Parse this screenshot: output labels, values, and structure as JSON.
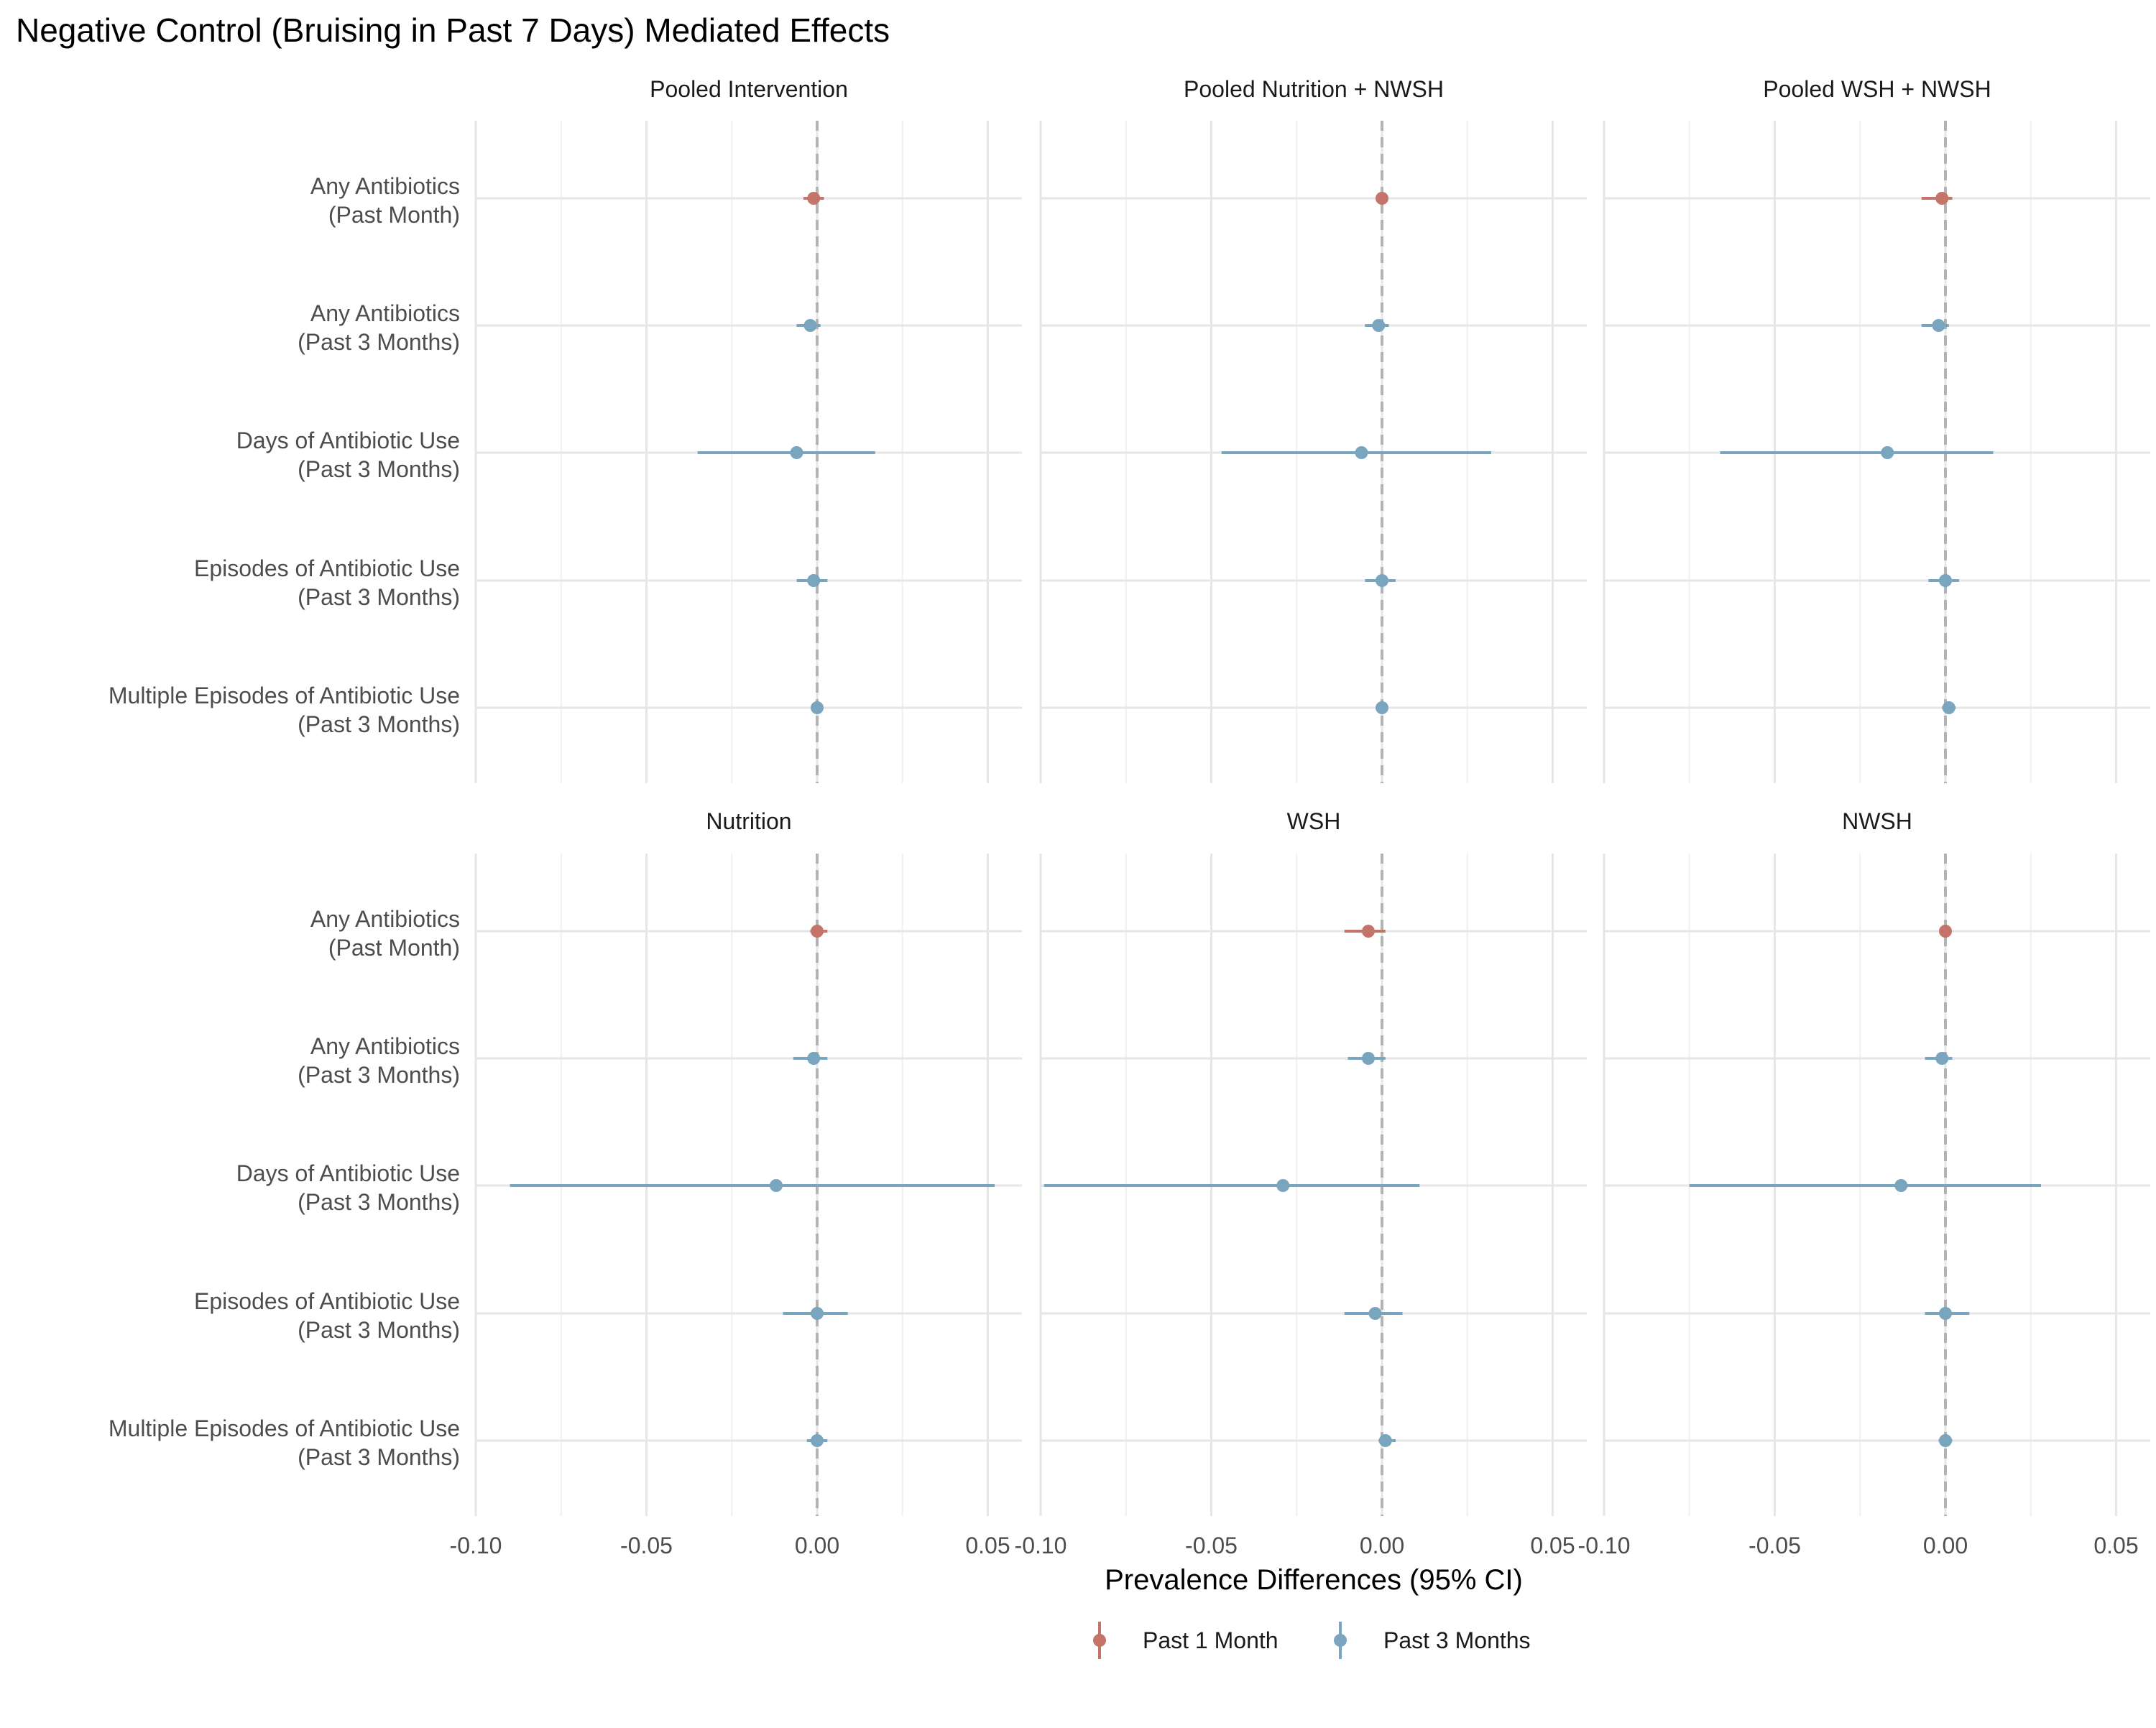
{
  "chart_data": {
    "type": "forest",
    "title": "Negative Control (Bruising in Past 7 Days) Mediated Effects",
    "xlabel": "Prevalence Differences (95% CI)",
    "ylabel": "",
    "xlim": [
      -0.1,
      0.06
    ],
    "x_ticks": [
      -0.1,
      -0.05,
      0.0,
      0.05
    ],
    "x_tick_labels": [
      "-0.10",
      "-0.05",
      "0.00",
      "0.05"
    ],
    "reference_line": 0,
    "grid": true,
    "legend_position": "bottom",
    "outcomes": [
      [
        "Any Antibiotics",
        "(Past Month)"
      ],
      [
        "Any Antibiotics",
        "(Past 3 Months)"
      ],
      [
        "Days of Antibiotic Use",
        "(Past 3 Months)"
      ],
      [
        "Episodes of Antibiotic Use",
        "(Past 3 Months)"
      ],
      [
        "Multiple Episodes of Antibiotic Use",
        "(Past 3 Months)"
      ]
    ],
    "legend": [
      {
        "name": "Past 1 Month",
        "color": "#c47468"
      },
      {
        "name": "Past 3 Months",
        "color": "#7aa5be"
      }
    ],
    "panels": [
      {
        "title": "Pooled Intervention",
        "points": [
          {
            "est": -0.001,
            "lo": -0.004,
            "hi": 0.002,
            "series": 0
          },
          {
            "est": -0.002,
            "lo": -0.006,
            "hi": 0.001,
            "series": 1
          },
          {
            "est": -0.006,
            "lo": -0.035,
            "hi": 0.017,
            "series": 1
          },
          {
            "est": -0.001,
            "lo": -0.006,
            "hi": 0.003,
            "series": 1
          },
          {
            "est": 0.0,
            "lo": -0.001,
            "hi": 0.001,
            "series": 1
          }
        ]
      },
      {
        "title": "Pooled Nutrition + NWSH",
        "points": [
          {
            "est": 0.0,
            "lo": -0.001,
            "hi": 0.001,
            "series": 0
          },
          {
            "est": -0.001,
            "lo": -0.005,
            "hi": 0.002,
            "series": 1
          },
          {
            "est": -0.006,
            "lo": -0.047,
            "hi": 0.032,
            "series": 1
          },
          {
            "est": 0.0,
            "lo": -0.005,
            "hi": 0.004,
            "series": 1
          },
          {
            "est": 0.0,
            "lo": -0.001,
            "hi": 0.001,
            "series": 1
          }
        ]
      },
      {
        "title": "Pooled WSH + NWSH",
        "points": [
          {
            "est": -0.001,
            "lo": -0.007,
            "hi": 0.002,
            "series": 0
          },
          {
            "est": -0.002,
            "lo": -0.007,
            "hi": 0.001,
            "series": 1
          },
          {
            "est": -0.017,
            "lo": -0.066,
            "hi": 0.014,
            "series": 1
          },
          {
            "est": 0.0,
            "lo": -0.005,
            "hi": 0.004,
            "series": 1
          },
          {
            "est": 0.001,
            "lo": -0.001,
            "hi": 0.003,
            "series": 1
          }
        ]
      },
      {
        "title": "Nutrition",
        "points": [
          {
            "est": 0.0,
            "lo": -0.002,
            "hi": 0.003,
            "series": 0
          },
          {
            "est": -0.001,
            "lo": -0.007,
            "hi": 0.003,
            "series": 1
          },
          {
            "est": -0.012,
            "lo": -0.09,
            "hi": 0.052,
            "series": 1
          },
          {
            "est": 0.0,
            "lo": -0.01,
            "hi": 0.009,
            "series": 1
          },
          {
            "est": 0.0,
            "lo": -0.003,
            "hi": 0.003,
            "series": 1
          }
        ]
      },
      {
        "title": "WSH",
        "points": [
          {
            "est": -0.004,
            "lo": -0.011,
            "hi": 0.001,
            "series": 0
          },
          {
            "est": -0.004,
            "lo": -0.01,
            "hi": 0.001,
            "series": 1
          },
          {
            "est": -0.029,
            "lo": -0.099,
            "hi": 0.011,
            "series": 1
          },
          {
            "est": -0.002,
            "lo": -0.011,
            "hi": 0.006,
            "series": 1
          },
          {
            "est": 0.001,
            "lo": -0.001,
            "hi": 0.004,
            "series": 1
          }
        ]
      },
      {
        "title": "NWSH",
        "points": [
          {
            "est": 0.0,
            "lo": -0.001,
            "hi": 0.001,
            "series": 0
          },
          {
            "est": -0.001,
            "lo": -0.006,
            "hi": 0.002,
            "series": 1
          },
          {
            "est": -0.013,
            "lo": -0.075,
            "hi": 0.028,
            "series": 1
          },
          {
            "est": 0.0,
            "lo": -0.006,
            "hi": 0.007,
            "series": 1
          },
          {
            "est": 0.0,
            "lo": -0.002,
            "hi": 0.002,
            "series": 1
          }
        ]
      }
    ]
  }
}
